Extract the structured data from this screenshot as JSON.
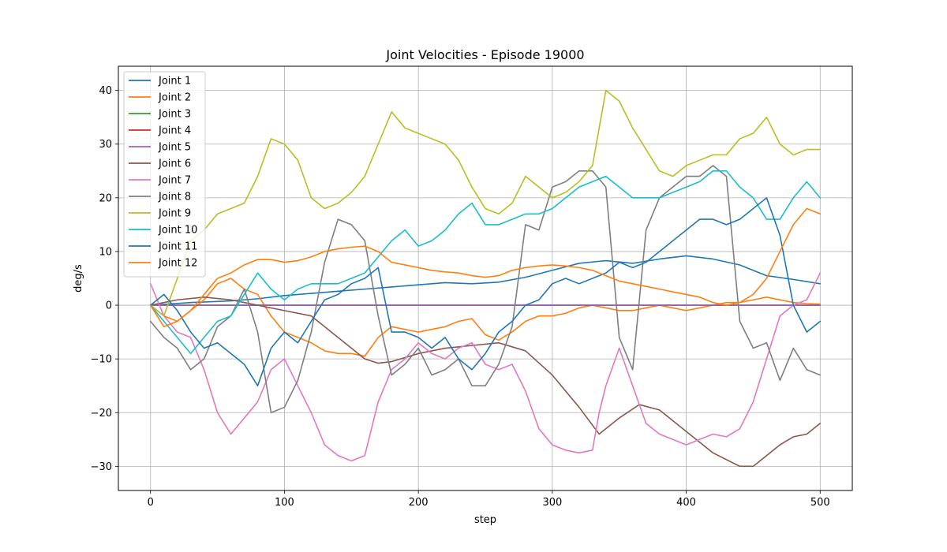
{
  "chart_data": {
    "type": "line",
    "title": "Joint Velocities - Episode 19000",
    "xlabel": "step",
    "ylabel": "deg/s",
    "xlim": [
      -24,
      524
    ],
    "ylim": [
      -34.5,
      44.5
    ],
    "xticks": [
      0,
      100,
      200,
      300,
      400,
      500
    ],
    "yticks": [
      -30,
      -20,
      -10,
      0,
      10,
      20,
      30,
      40
    ],
    "grid": true,
    "legend_position": "top-left",
    "series": [
      {
        "name": "Joint 1",
        "color": "#1f77b4",
        "x": [
          0,
          30,
          60,
          80,
          100,
          120,
          140,
          160,
          180,
          200,
          220,
          240,
          260,
          280,
          300,
          320,
          340,
          360,
          380,
          400,
          420,
          440,
          460,
          480,
          500
        ],
        "y": [
          0,
          0.5,
          0.8,
          1.2,
          1.8,
          2.2,
          2.6,
          3.0,
          3.4,
          3.8,
          4.2,
          4.0,
          4.3,
          5.2,
          6.5,
          7.8,
          8.3,
          7.8,
          8.6,
          9.2,
          8.6,
          7.5,
          5.5,
          4.8,
          4.0
        ]
      },
      {
        "name": "Joint 2",
        "color": "#ff7f0e",
        "x": [
          0,
          10,
          20,
          30,
          40,
          50,
          60,
          70,
          80,
          90,
          100,
          110,
          120,
          130,
          140,
          150,
          160,
          170,
          180,
          190,
          200,
          210,
          220,
          230,
          240,
          250,
          260,
          270,
          280,
          290,
          300,
          310,
          320,
          330,
          340,
          350,
          360,
          370,
          380,
          390,
          400,
          410,
          420,
          430,
          440,
          450,
          460,
          470,
          480,
          490,
          500
        ],
        "y": [
          0,
          -2,
          -3,
          -1,
          1,
          4,
          5,
          3,
          2,
          -2,
          -5,
          -6,
          -7,
          -8.5,
          -9,
          -9,
          -9.5,
          -6,
          -4,
          -4.5,
          -5,
          -4.5,
          -4,
          -3,
          -2.5,
          -5.5,
          -6.5,
          -5,
          -3,
          -2,
          -2,
          -1.5,
          -0.5,
          0,
          -0.5,
          -1,
          -1,
          -0.5,
          0,
          -0.5,
          -1,
          -0.5,
          0,
          0.5,
          0.5,
          1,
          1.5,
          1,
          0.5,
          0.3,
          0.2
        ]
      },
      {
        "name": "Joint 3",
        "color": "#2ca02c",
        "x": [
          0,
          500
        ],
        "y": [
          0,
          0
        ]
      },
      {
        "name": "Joint 4",
        "color": "#d62728",
        "x": [
          0,
          500
        ],
        "y": [
          0,
          0
        ]
      },
      {
        "name": "Joint 5",
        "color": "#9467bd",
        "x": [
          0,
          500
        ],
        "y": [
          0,
          0
        ]
      },
      {
        "name": "Joint 6",
        "color": "#8c564b",
        "x": [
          0,
          20,
          40,
          60,
          80,
          100,
          120,
          140,
          160,
          170,
          180,
          200,
          220,
          240,
          260,
          280,
          300,
          320,
          335,
          350,
          365,
          380,
          400,
          420,
          440,
          450,
          460,
          470,
          480,
          490,
          500
        ],
        "y": [
          0,
          1,
          1.5,
          1,
          0,
          -1,
          -2,
          -6,
          -10,
          -10.8,
          -10.5,
          -9,
          -8,
          -7.5,
          -7,
          -8.5,
          -13,
          -19,
          -24,
          -21,
          -18.5,
          -19.5,
          -23.5,
          -27.5,
          -30,
          -30,
          -28,
          -26,
          -24.5,
          -24,
          -22
        ]
      },
      {
        "name": "Joint 7",
        "color": "#e377c2",
        "x": [
          0,
          10,
          20,
          30,
          40,
          50,
          60,
          70,
          80,
          90,
          100,
          110,
          120,
          130,
          140,
          150,
          160,
          170,
          180,
          190,
          200,
          210,
          220,
          230,
          240,
          250,
          260,
          270,
          280,
          290,
          300,
          310,
          320,
          330,
          335,
          340,
          350,
          360,
          370,
          380,
          390,
          400,
          410,
          420,
          430,
          440,
          450,
          460,
          470,
          480,
          490,
          500
        ],
        "y": [
          4,
          -2,
          -5,
          -6,
          -12,
          -20,
          -24,
          -21,
          -18,
          -12,
          -10,
          -15,
          -20,
          -26,
          -28,
          -29,
          -28,
          -18,
          -12,
          -10,
          -7,
          -9,
          -10,
          -8,
          -7,
          -11,
          -12,
          -11,
          -16,
          -23,
          -26,
          -27,
          -27.5,
          -27,
          -20,
          -15,
          -8,
          -15,
          -22,
          -24,
          -25,
          -26,
          -25,
          -24,
          -24.5,
          -23,
          -18,
          -10,
          -2,
          0,
          1,
          6
        ]
      },
      {
        "name": "Joint 8",
        "color": "#7f7f7f",
        "x": [
          0,
          10,
          20,
          30,
          40,
          50,
          60,
          70,
          80,
          90,
          100,
          110,
          120,
          130,
          140,
          150,
          160,
          170,
          180,
          190,
          200,
          210,
          220,
          230,
          240,
          250,
          260,
          270,
          280,
          290,
          300,
          310,
          320,
          330,
          340,
          350,
          360,
          370,
          380,
          390,
          400,
          410,
          420,
          430,
          440,
          450,
          460,
          470,
          480,
          490,
          500
        ],
        "y": [
          -3,
          -6,
          -8,
          -12,
          -10,
          -4,
          -2,
          3,
          -5,
          -20,
          -19,
          -14,
          -5,
          8,
          16,
          15,
          12,
          -2,
          -13,
          -11,
          -8,
          -13,
          -12,
          -10,
          -15,
          -15,
          -11,
          -4,
          15,
          14,
          22,
          23,
          25,
          25,
          22,
          -6,
          -12,
          14,
          20,
          22,
          24,
          24,
          26,
          24,
          -3,
          -8,
          -7,
          -14,
          -8,
          -12,
          -13
        ]
      },
      {
        "name": "Joint 9",
        "color": "#bcbd22",
        "x": [
          0,
          10,
          20,
          30,
          40,
          50,
          60,
          70,
          80,
          90,
          100,
          110,
          120,
          130,
          140,
          150,
          160,
          170,
          180,
          190,
          200,
          210,
          220,
          230,
          240,
          250,
          260,
          270,
          280,
          290,
          300,
          310,
          320,
          330,
          340,
          350,
          360,
          370,
          380,
          390,
          400,
          410,
          420,
          430,
          440,
          450,
          460,
          470,
          480,
          490,
          500
        ],
        "y": [
          0,
          -2,
          5,
          12,
          14,
          17,
          18,
          19,
          24,
          31,
          30,
          27,
          20,
          18,
          19,
          21,
          24,
          30,
          36,
          33,
          32,
          31,
          30,
          27,
          22,
          18,
          17,
          19,
          24,
          22,
          20,
          21,
          23,
          26,
          40,
          38,
          33,
          29,
          25,
          24,
          26,
          27,
          28,
          28,
          31,
          32,
          35,
          30,
          28,
          29,
          29
        ]
      },
      {
        "name": "Joint 10",
        "color": "#17becf",
        "x": [
          0,
          10,
          20,
          30,
          40,
          50,
          60,
          70,
          80,
          90,
          100,
          110,
          120,
          130,
          140,
          150,
          160,
          170,
          180,
          190,
          200,
          210,
          220,
          230,
          240,
          250,
          260,
          270,
          280,
          290,
          300,
          310,
          320,
          330,
          340,
          350,
          360,
          370,
          380,
          390,
          400,
          410,
          420,
          430,
          440,
          450,
          460,
          470,
          480,
          490,
          500
        ],
        "y": [
          0,
          -3,
          -6,
          -9,
          -6,
          -3,
          -2,
          2,
          6,
          3,
          1,
          3,
          4,
          4,
          4,
          5,
          6,
          9,
          12,
          14,
          11,
          12,
          14,
          17,
          19,
          15,
          15,
          16,
          17,
          17,
          18,
          20,
          22,
          23,
          24,
          22,
          20,
          20,
          20,
          21,
          22,
          23,
          25,
          25,
          22,
          20,
          16,
          16,
          20,
          23,
          20
        ]
      },
      {
        "name": "Joint 11",
        "color": "#1f77b4",
        "x": [
          0,
          10,
          20,
          30,
          40,
          50,
          60,
          70,
          80,
          90,
          100,
          110,
          120,
          130,
          140,
          150,
          160,
          170,
          180,
          190,
          200,
          210,
          220,
          230,
          240,
          250,
          260,
          270,
          280,
          290,
          300,
          310,
          320,
          330,
          340,
          350,
          360,
          370,
          380,
          390,
          400,
          410,
          420,
          430,
          440,
          450,
          460,
          470,
          480,
          490,
          500
        ],
        "y": [
          0,
          2,
          -1,
          -5,
          -8,
          -7,
          -9,
          -11,
          -15,
          -8,
          -5,
          -7,
          -3,
          1,
          2,
          4,
          5,
          7,
          -5,
          -5,
          -6,
          -8,
          -6,
          -10,
          -12,
          -9,
          -5,
          -3,
          0,
          1,
          4,
          5,
          4,
          5,
          6,
          8,
          7,
          8,
          10,
          12,
          14,
          16,
          16,
          15,
          16,
          18,
          20,
          13,
          0,
          -5,
          -3
        ]
      },
      {
        "name": "Joint 12",
        "color": "#ff7f0e",
        "x": [
          0,
          10,
          20,
          30,
          40,
          50,
          60,
          70,
          80,
          90,
          100,
          110,
          120,
          130,
          140,
          150,
          160,
          170,
          180,
          190,
          200,
          210,
          220,
          230,
          240,
          250,
          260,
          270,
          280,
          290,
          300,
          310,
          320,
          330,
          340,
          350,
          360,
          370,
          380,
          390,
          400,
          410,
          420,
          430,
          440,
          450,
          460,
          470,
          480,
          490,
          500
        ],
        "y": [
          0,
          -4,
          -3,
          -1,
          2,
          5,
          6,
          7.5,
          8.5,
          8.5,
          8,
          8.3,
          9,
          10,
          10.5,
          10.8,
          11,
          10,
          8,
          7.5,
          7,
          6.5,
          6.2,
          6,
          5.5,
          5.2,
          5.5,
          6.5,
          7,
          7.3,
          7.5,
          7.3,
          7,
          6.5,
          5.5,
          4.5,
          4,
          3.5,
          3,
          2.5,
          2,
          1.5,
          0.5,
          0,
          0.5,
          2,
          5,
          10,
          15,
          18,
          17
        ]
      }
    ]
  }
}
